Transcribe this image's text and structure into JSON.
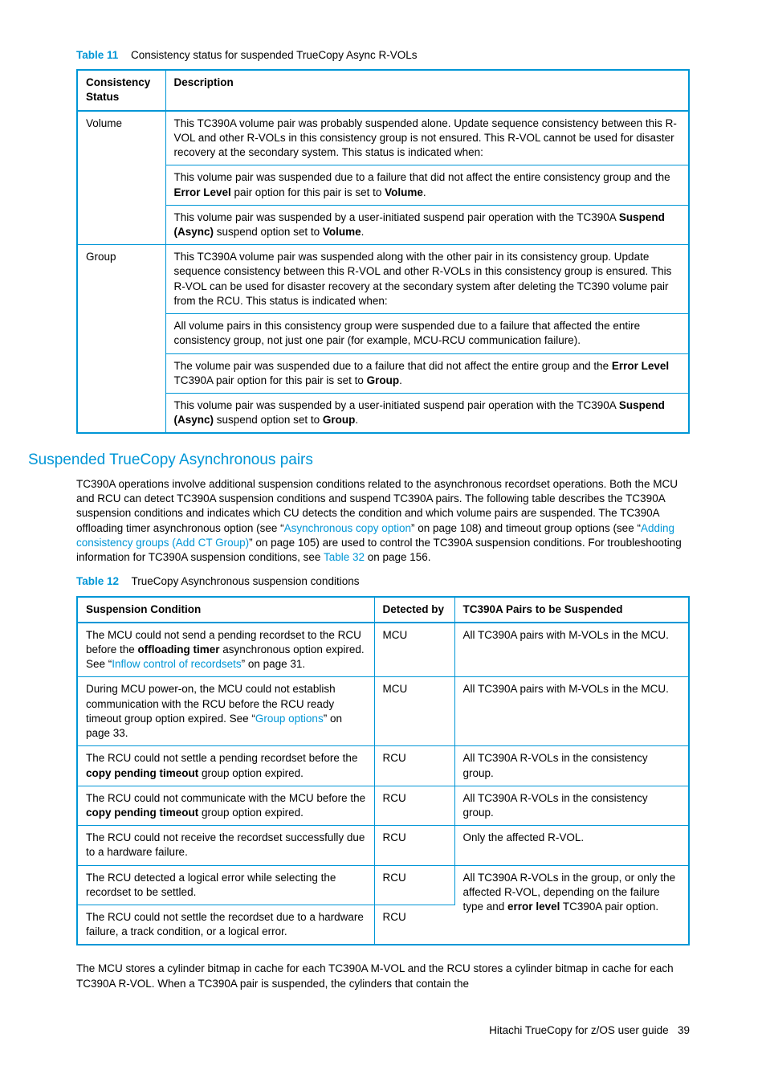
{
  "colors": {
    "accent": "#0096d6",
    "text": "#000000",
    "background": "#ffffff"
  },
  "table11": {
    "label": "Table 11",
    "caption": "Consistency status for suspended TrueCopy Async R-VOLs",
    "headers": {
      "c1": "Consistency Status",
      "c2": "Description"
    },
    "rows": [
      {
        "status": "Volume",
        "p1a": "This TC390A volume pair was probably suspended alone. Update sequence consistency between this R-VOL and other R-VOLs in this consistency group is not ensured. This R-VOL cannot be used for disaster recovery at the secondary system. This status is indicated when:",
        "p1b_pre": "This volume pair was suspended due to a failure that did not affect the entire consistency group and the ",
        "p1b_b1": "Error Level",
        "p1b_mid": " pair option for this pair is set to ",
        "p1b_b2": "Volume",
        "p1b_post": ".",
        "p1c_pre": "This volume pair was suspended by a user-initiated suspend pair operation with the TC390A ",
        "p1c_b1": "Suspend (Async)",
        "p1c_mid": " suspend option set to ",
        "p1c_b2": "Volume",
        "p1c_post": "."
      },
      {
        "status": "Group",
        "p2a": "This TC390A volume pair was suspended along with the other pair in its consistency group. Update sequence consistency between this R-VOL and other R-VOLs in this consistency group is ensured. This R-VOL can be used for disaster recovery at the secondary system after deleting the TC390 volume pair from the RCU. This status is indicated when:",
        "p2b": "All volume pairs in this consistency group were suspended due to a failure that affected the entire consistency group, not just one pair (for example, MCU-RCU communication failure).",
        "p2c_pre": "The volume pair was suspended due to a failure that did not affect the entire group and the ",
        "p2c_b1": "Error Level",
        "p2c_mid": " TC390A pair option for this pair is set to ",
        "p2c_b2": "Group",
        "p2c_post": ".",
        "p2d_pre": "This volume pair was suspended by a user-initiated suspend pair operation with the TC390A ",
        "p2d_b1": "Suspend (Async)",
        "p2d_mid": " suspend option set to ",
        "p2d_b2": "Group",
        "p2d_post": "."
      }
    ]
  },
  "heading": "Suspended TrueCopy Asynchronous pairs",
  "para": {
    "s1": "TC390A operations involve additional suspension conditions related to the asynchronous recordset operations. Both the MCU and RCU can detect TC390A suspension conditions and suspend TC390A pairs. The following table describes the TC390A suspension conditions and indicates which CU detects the condition and which volume pairs are suspended. The TC390A offloading timer asynchronous option (see “",
    "l1": "Asynchronous copy option",
    "s2": "” on page 108) and timeout group options (see “",
    "l2": "Adding consistency groups (Add CT Group)",
    "s3": "” on page 105) are used to control the TC390A suspension conditions. For troubleshooting information for TC390A suspension conditions, see ",
    "l3": "Table 32",
    "s4": " on page 156."
  },
  "table12": {
    "label": "Table 12",
    "caption": "TrueCopy Asynchronous suspension conditions",
    "headers": {
      "c1": "Suspension Condition",
      "c2": "Detected by",
      "c3": "TC390A Pairs to be Suspended"
    },
    "rows": [
      {
        "cond_pre": "The MCU could not send a pending recordset to the RCU before the ",
        "cond_b": "offloading timer",
        "cond_mid": " asynchronous option expired. See “",
        "cond_link": "Inflow control of recordsets",
        "cond_post": "” on page 31.",
        "det": "MCU",
        "pairs": "All TC390A pairs with M-VOLs in the MCU."
      },
      {
        "cond_pre": "During MCU power-on, the MCU could not establish communication with the RCU before the RCU ready timeout group option expired. See “",
        "cond_link": "Group options",
        "cond_post": "” on page 33.",
        "det": "MCU",
        "pairs": "All TC390A pairs with M-VOLs in the MCU."
      },
      {
        "cond_pre": "The RCU could not settle a pending recordset before the ",
        "cond_b": "copy pending timeout",
        "cond_post": " group option expired.",
        "det": "RCU",
        "pairs": "All TC390A R-VOLs in the consistency group."
      },
      {
        "cond_pre": "The RCU could not communicate with the MCU before the ",
        "cond_b": "copy pending timeout",
        "cond_post": " group option expired.",
        "det": "RCU",
        "pairs": "All TC390A R-VOLs in the consistency group."
      },
      {
        "cond": "The RCU could not receive the recordset successfully due to a hardware failure.",
        "det": "RCU",
        "pairs": "Only the affected R-VOL."
      },
      {
        "cond": "The RCU detected a logical error while selecting the recordset to be settled.",
        "det": "RCU",
        "pairs_pre": "All TC390A R-VOLs in the group, or only the affected R-VOL, depending on the failure type and ",
        "pairs_b": "error level",
        "pairs_post": " TC390A pair option."
      },
      {
        "cond": "The RCU could not settle the recordset due to a hardware failure, a track condition, or a logical error.",
        "det": "RCU"
      }
    ]
  },
  "trailing": "The MCU stores a cylinder bitmap in cache for each TC390A M-VOL and the RCU stores a cylinder bitmap in cache for each TC390A R-VOL. When a TC390A pair is suspended, the cylinders that contain the",
  "footer": {
    "title": "Hitachi TrueCopy for z/OS user guide",
    "page": "39"
  }
}
